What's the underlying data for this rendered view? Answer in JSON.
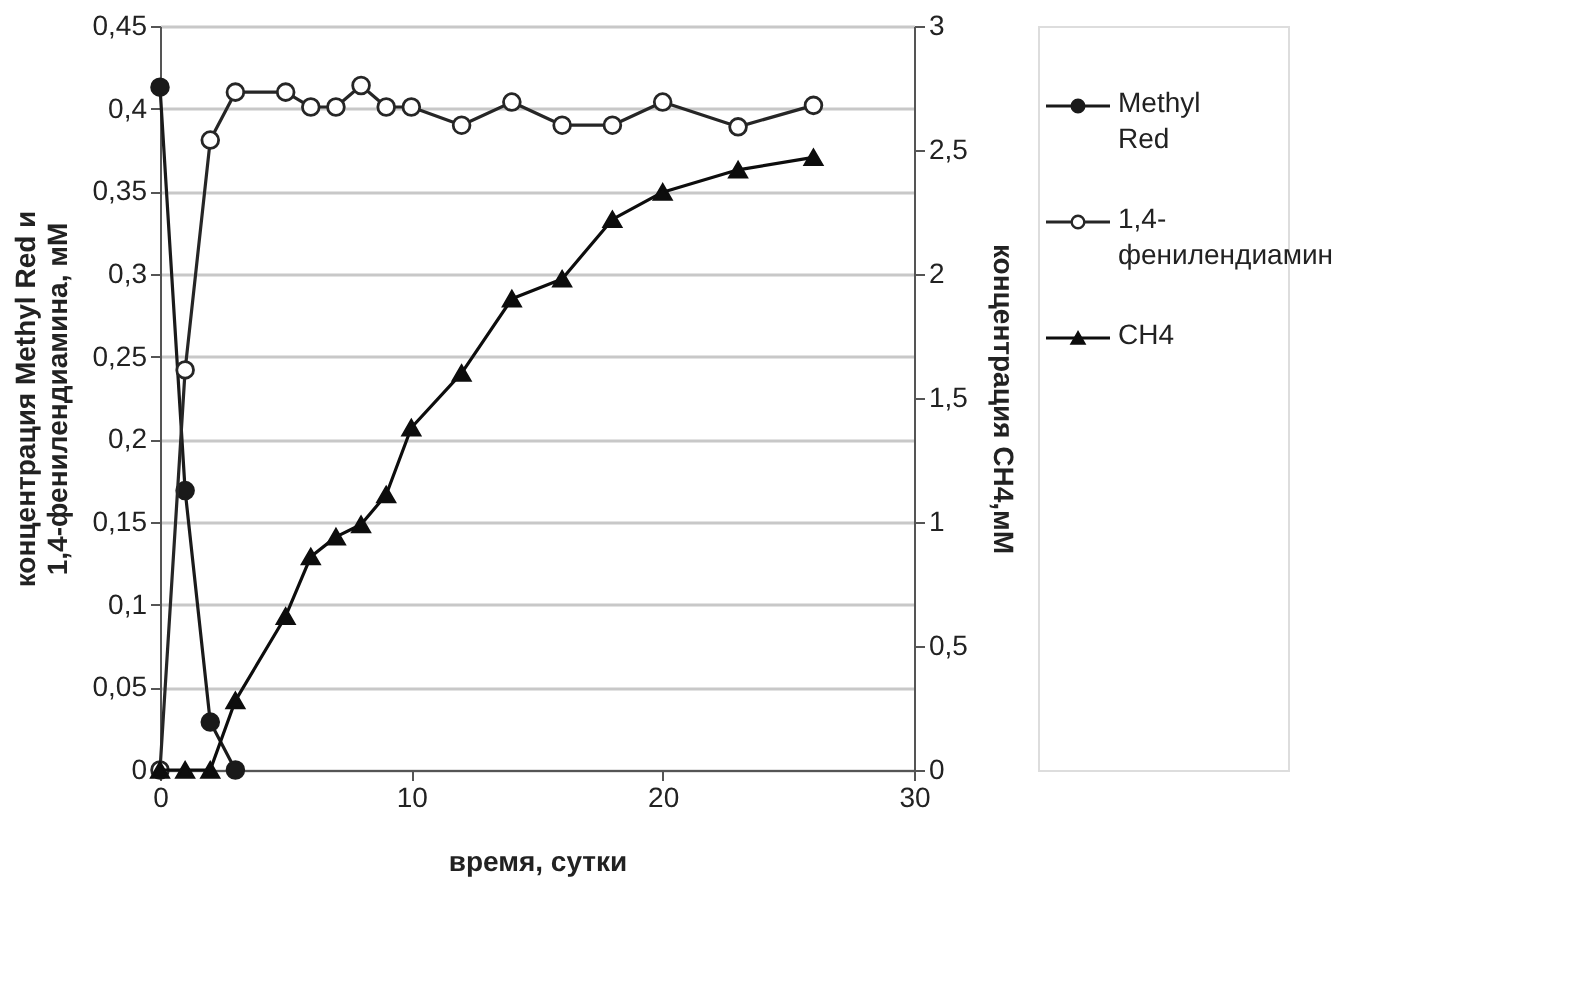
{
  "chart_data": {
    "type": "line",
    "xlabel": "время, сутки",
    "ylabel": "концентрация Methyl Red и\n1,4-фенилендиамина, мМ",
    "y2label": "концентрация CH4,мМ",
    "xlim": [
      0,
      30
    ],
    "xticks": [
      0,
      10,
      20,
      30
    ],
    "ylim": [
      0,
      0.45
    ],
    "yticks": [
      0,
      {
        "value": 0.05,
        "label": "0,05"
      },
      {
        "value": 0.1,
        "label": "0,1"
      },
      {
        "value": 0.15,
        "label": "0,15"
      },
      {
        "value": 0.2,
        "label": "0,2"
      },
      {
        "value": 0.25,
        "label": "0,25"
      },
      {
        "value": 0.3,
        "label": "0,3"
      },
      {
        "value": 0.35,
        "label": "0,35"
      },
      {
        "value": 0.4,
        "label": "0,4"
      },
      {
        "value": 0.45,
        "label": "0,45"
      }
    ],
    "y2lim": [
      0,
      3
    ],
    "y2ticks": [
      0,
      {
        "value": 0.5,
        "label": "0,5"
      },
      1,
      {
        "value": 1.5,
        "label": "1,5"
      },
      2,
      {
        "value": 2.5,
        "label": "2,5"
      },
      3
    ],
    "grid": "y",
    "legend": "right",
    "line_style": "solid",
    "series": [
      {
        "name": "Methyl Red",
        "color": "#1a1a1a",
        "marker": "circle",
        "x": [
          0,
          1,
          2,
          3
        ],
        "values": [
          0.413,
          0.169,
          0.029,
          0
        ]
      },
      {
        "name": "1,4-фенилендиамин",
        "color": "#262626",
        "marker": "circle",
        "colors": [
          "#ffffff",
          "#ffffff",
          "#ffffff",
          "#ffffff",
          "#ffffff",
          "#ffffff",
          "#ffffff",
          "#ffffff",
          "#ffffff",
          "#ffffff",
          "#ffffff",
          "#ffffff",
          "#ffffff",
          "#ffffff",
          "#ffffff",
          "#ffffff",
          "#ffffff"
        ],
        "x": [
          0,
          1,
          2,
          3,
          5,
          6,
          7,
          8,
          9,
          10,
          12,
          14,
          16,
          18,
          20,
          23,
          26
        ],
        "values": [
          0,
          0.242,
          0.381,
          0.41,
          0.41,
          0.401,
          0.401,
          0.414,
          0.401,
          0.401,
          0.39,
          0.404,
          0.39,
          0.39,
          0.404,
          0.389,
          0.402
        ]
      },
      {
        "name": "CH4",
        "color": "#0d0d0d",
        "marker": "triangle",
        "axis": "y2",
        "x": [
          0,
          1,
          2,
          3,
          5,
          6,
          7,
          8,
          9,
          10,
          12,
          14,
          16,
          18,
          20,
          23,
          26
        ],
        "values": [
          0,
          0,
          0,
          0.28,
          0.62,
          0.86,
          0.94,
          0.99,
          1.11,
          1.38,
          1.6,
          1.9,
          1.98,
          2.22,
          2.33,
          2.42,
          2.47
        ]
      }
    ]
  }
}
